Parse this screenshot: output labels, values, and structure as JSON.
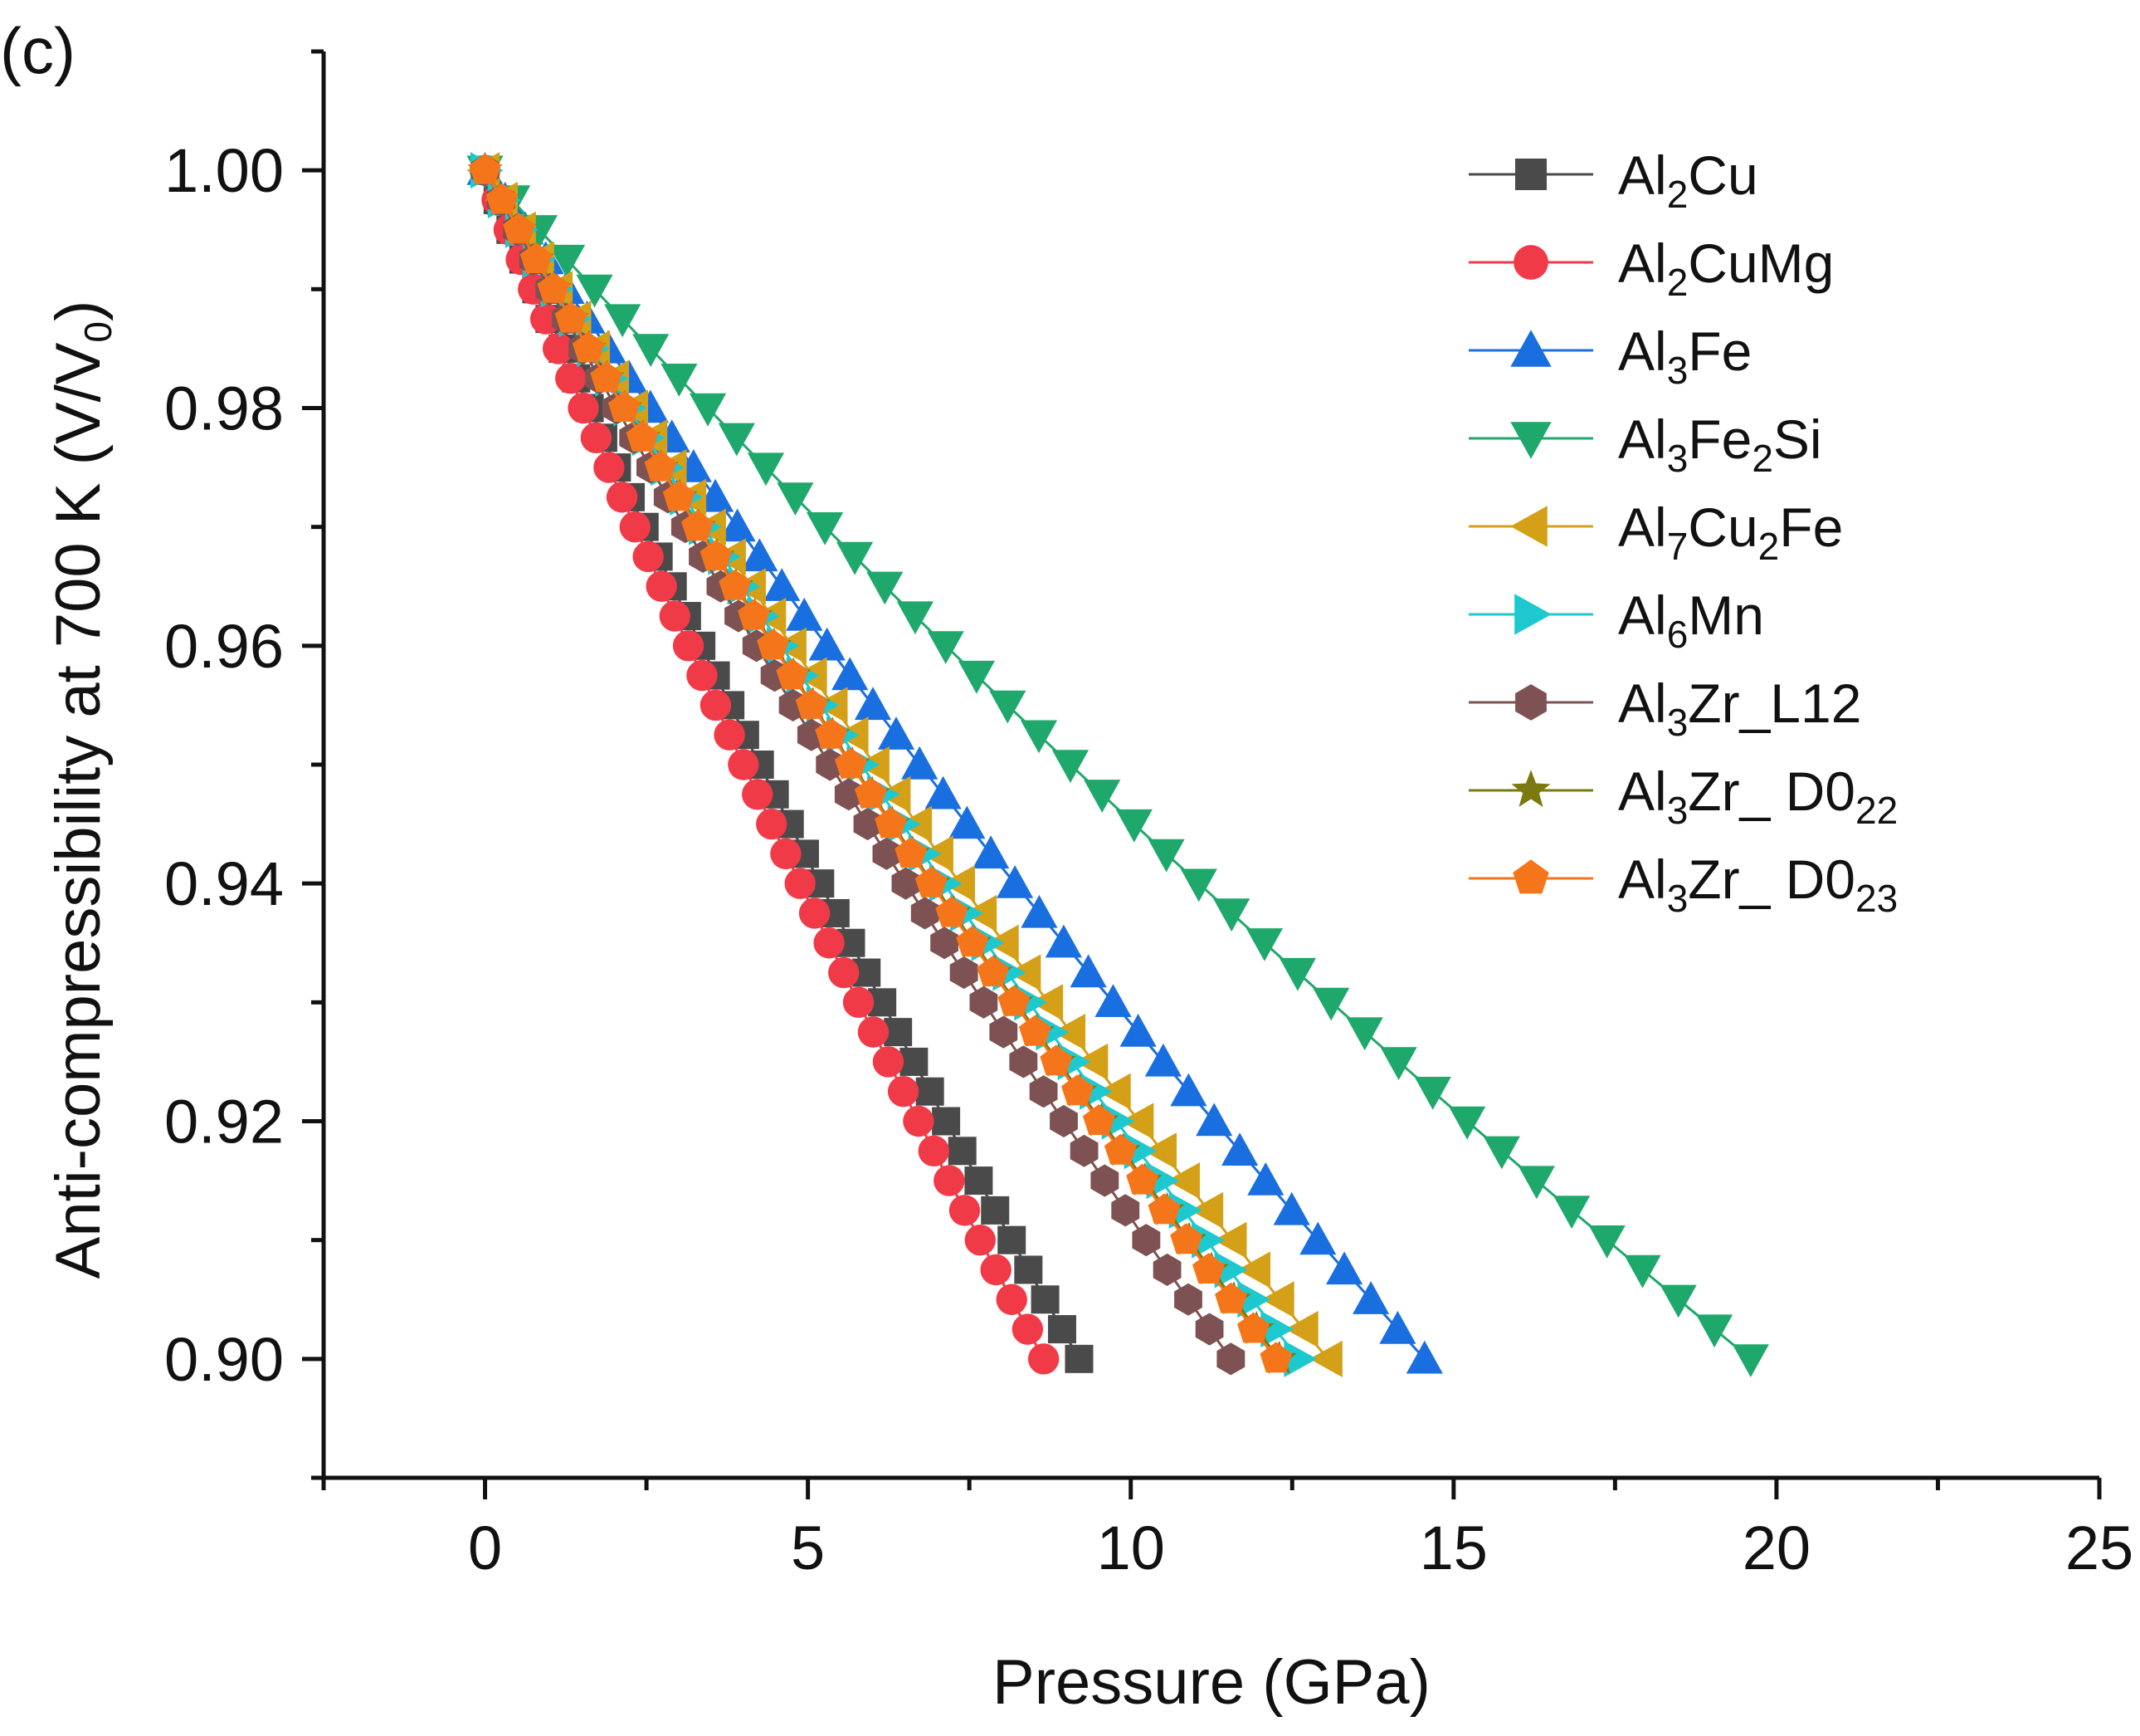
{
  "chart_data": {
    "type": "line",
    "panel_label": "(c)",
    "title": "",
    "xlabel": "Pressure (GPa)",
    "ylabel": "Anti-compressibility at 700 K (V/V",
    "ylabel_sub": "0",
    "ylabel_end": ")",
    "xlim": [
      -2.5,
      25
    ],
    "ylim": [
      0.89,
      1.01
    ],
    "x_ticks": [
      0,
      5,
      10,
      15,
      20,
      25
    ],
    "x_tick_labels": [
      "0",
      "5",
      "10",
      "15",
      "20",
      "25"
    ],
    "x_minor_ticks": [
      -2.5,
      2.5,
      7.5,
      12.5,
      17.5,
      22.5
    ],
    "y_ticks": [
      0.9,
      0.92,
      0.94,
      0.96,
      0.98,
      1.0
    ],
    "y_tick_labels": [
      "0.90",
      "0.92",
      "0.94",
      "0.96",
      "0.98",
      "1.00"
    ],
    "y_minor_ticks": [
      0.89,
      0.91,
      0.93,
      0.95,
      0.97,
      0.99,
      1.01
    ],
    "grid": false,
    "legend_position": "top-right",
    "v_start": 1.0,
    "v_end": 0.9,
    "points_per_series": 41,
    "series": [
      {
        "name": "Al2Cu",
        "label_parts": [
          [
            "Al",
            ""
          ],
          [
            "2",
            "sub"
          ],
          [
            "Cu",
            ""
          ]
        ],
        "marker": "square",
        "color": "#4a4a4a",
        "p_max": 9.2,
        "curvature": 0.15
      },
      {
        "name": "Al2CuMg",
        "label_parts": [
          [
            "Al",
            ""
          ],
          [
            "2",
            "sub"
          ],
          [
            "CuMg",
            ""
          ]
        ],
        "marker": "circle",
        "color": "#f03a47",
        "p_max": 8.65,
        "curvature": 0.15
      },
      {
        "name": "Al3Fe",
        "label_parts": [
          [
            "Al",
            ""
          ],
          [
            "3",
            "sub"
          ],
          [
            "Fe",
            ""
          ]
        ],
        "marker": "triangle-up",
        "color": "#1a6fe0",
        "p_max": 14.55,
        "curvature": 0.15
      },
      {
        "name": "Al3Fe2Si",
        "label_parts": [
          [
            "Al",
            ""
          ],
          [
            "3",
            "sub"
          ],
          [
            "Fe",
            ""
          ],
          [
            "2",
            "sub"
          ],
          [
            "Si",
            ""
          ]
        ],
        "marker": "triangle-down",
        "color": "#1fa86b",
        "p_max": 19.6,
        "curvature": 0.15
      },
      {
        "name": "Al7Cu2Fe",
        "label_parts": [
          [
            "Al",
            ""
          ],
          [
            "7",
            "sub"
          ],
          [
            "Cu",
            ""
          ],
          [
            "2",
            "sub"
          ],
          [
            "Fe",
            ""
          ]
        ],
        "marker": "triangle-left",
        "color": "#d4a017",
        "p_max": 13.05,
        "curvature": 0.15
      },
      {
        "name": "Al6Mn",
        "label_parts": [
          [
            "Al",
            ""
          ],
          [
            "6",
            "sub"
          ],
          [
            "Mn",
            ""
          ]
        ],
        "marker": "triangle-right",
        "color": "#1ec8cf",
        "p_max": 12.6,
        "curvature": 0.15
      },
      {
        "name": "Al3Zr_L12",
        "label_parts": [
          [
            "Al",
            ""
          ],
          [
            "3",
            "sub"
          ],
          [
            "Zr_L12",
            ""
          ]
        ],
        "marker": "hexagon",
        "color": "#7e5252",
        "p_max": 11.55,
        "curvature": 0.15
      },
      {
        "name": "Al3Zr_D022",
        "label_parts": [
          [
            "Al",
            ""
          ],
          [
            "3",
            "sub"
          ],
          [
            "Zr_ D0",
            ""
          ],
          [
            "22",
            "sub"
          ]
        ],
        "marker": "star",
        "color": "#7a7a10",
        "p_max": 12.3,
        "curvature": 0.15
      },
      {
        "name": "Al3Zr_D023",
        "label_parts": [
          [
            "Al",
            ""
          ],
          [
            "3",
            "sub"
          ],
          [
            "Zr_ D0",
            ""
          ],
          [
            "23",
            "sub"
          ]
        ],
        "marker": "pentagon",
        "color": "#f5761a",
        "p_max": 12.25,
        "curvature": 0.15
      }
    ]
  }
}
